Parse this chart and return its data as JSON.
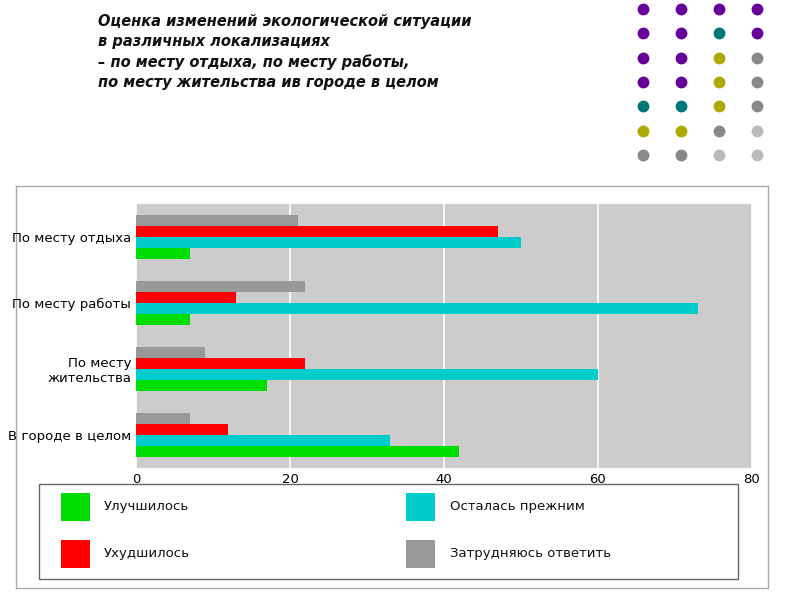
{
  "title_line1": "Оценка изменений экологической ситуации",
  "title_line2": "в различных локализациях",
  "title_line3": "– по месту отдыха, по месту работы,",
  "title_line4": "по месту жительства ив городе в целом",
  "categories": [
    "По месту отдыха",
    "По месту работы",
    "По месту\nжительства",
    "В городе в целом"
  ],
  "series": {
    "Затрудняюсь ответить": [
      21,
      22,
      9,
      7
    ],
    "Ухудшилось": [
      47,
      13,
      22,
      12
    ],
    "Осталась прежним": [
      50,
      73,
      60,
      33
    ],
    "Улучшилось": [
      7,
      7,
      17,
      42
    ]
  },
  "colors": {
    "Улучшилось": "#00dd00",
    "Осталась прежним": "#00cccc",
    "Ухудшилось": "#ff0000",
    "Затрудняюсь ответить": "#999999"
  },
  "xlim": [
    0,
    80
  ],
  "xticks": [
    0,
    20,
    40,
    60,
    80
  ],
  "bar_height": 0.17,
  "plot_bg_color": "#cccccc",
  "outer_bg": "#ffffff",
  "frame_bg": "#ffffff",
  "legend_order": [
    "Улучшилось",
    "Осталась прежним",
    "Ухудшилось",
    "Затрудняюсь ответить"
  ],
  "grid_color": "#ffffff",
  "dot_colors_grid": [
    [
      "#660099",
      "#660099",
      "#660099",
      "#660099"
    ],
    [
      "#660099",
      "#660099",
      "#007777",
      "#660099"
    ],
    [
      "#660099",
      "#660099",
      "#aaaa00",
      "#888888"
    ],
    [
      "#660099",
      "#660099",
      "#aaaa00",
      "#888888"
    ],
    [
      "#007777",
      "#007777",
      "#aaaa00",
      "#888888"
    ],
    [
      "#aaaa00",
      "#aaaa00",
      "#888888",
      "#bbbbbb"
    ],
    [
      "#888888",
      "#888888",
      "#bbbbbb",
      "#bbbbbb"
    ]
  ]
}
